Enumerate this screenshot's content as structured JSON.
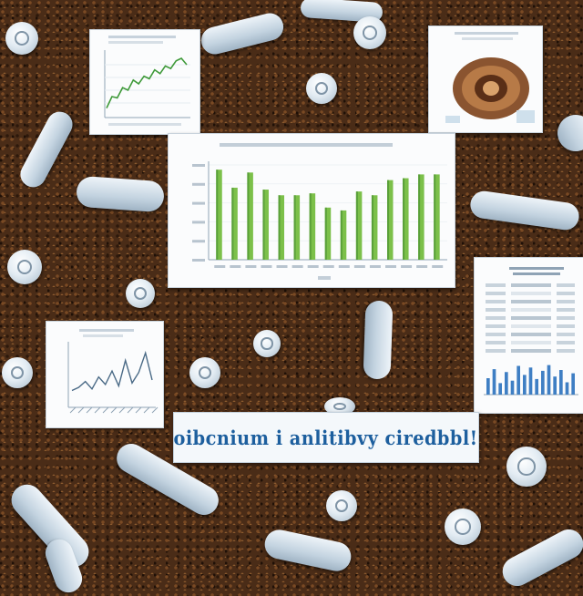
{
  "banner": {
    "text": "oibcnium i anlitibvy ciredbbl!"
  },
  "colors": {
    "soil": "#4a2c17",
    "card": "#fbfcfd",
    "bar_green": "#7cc04a",
    "bar_blue": "#3f7fc4",
    "line_green": "#3f9a3a",
    "banner_text": "#1d5f9e"
  },
  "main_bar_chart": {
    "values": [
      95,
      76,
      92,
      74,
      68,
      68,
      70,
      55,
      52,
      72,
      68,
      84,
      86,
      90,
      90
    ]
  },
  "top_line_chart": {
    "values": [
      12,
      30,
      28,
      44,
      40,
      56,
      50,
      62,
      58,
      72,
      66,
      78,
      74,
      86,
      90,
      80
    ]
  },
  "left_line_chart": {
    "values": [
      20,
      24,
      32,
      22,
      38,
      28,
      46,
      26,
      60,
      30,
      44,
      70,
      34
    ]
  },
  "right_bar_chart": {
    "values": [
      40,
      62,
      28,
      55,
      34,
      70,
      48,
      66,
      38,
      58,
      72,
      44,
      60,
      30,
      52
    ]
  }
}
